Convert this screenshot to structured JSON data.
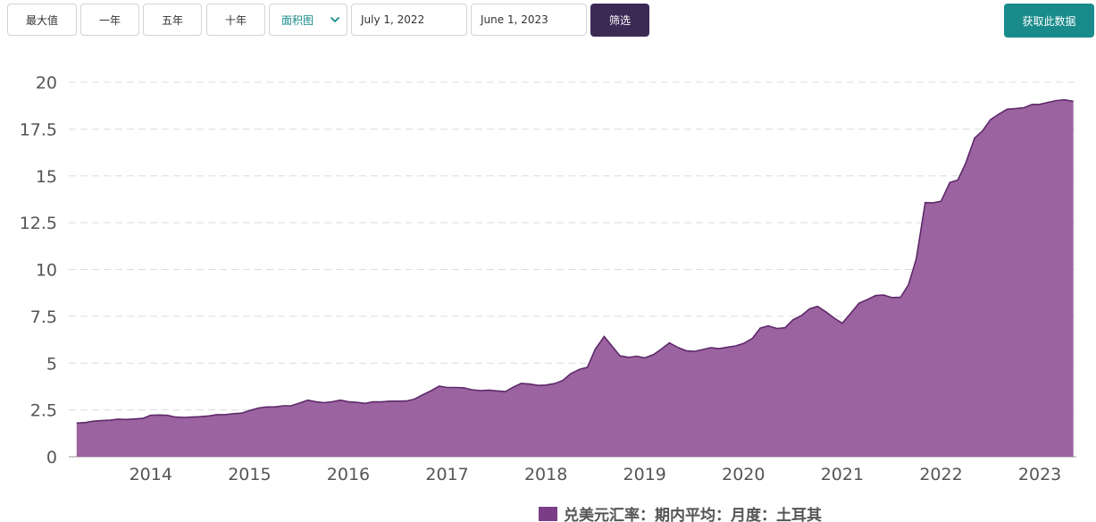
{
  "toolbar": {
    "max_label": "最大值",
    "one_year_label": "一年",
    "five_year_label": "五年",
    "ten_year_label": "十年",
    "chart_type_selected": "面积图",
    "start_date": "July 1, 2022",
    "end_date": "June 1, 2023",
    "filter_label": "筛选",
    "fetch_label": "获取此数据"
  },
  "colors": {
    "area_fill": "#9b63a0",
    "area_line": "#5e2a6a",
    "legend_swatch": "#7b3d86",
    "filter_bg": "#3c2a55",
    "fetch_bg": "#1a8b8b"
  },
  "chart_data": {
    "type": "area",
    "y_ticks": [
      "0",
      "2.5",
      "5",
      "7.5",
      "10",
      "12.5",
      "15",
      "17.5",
      "20"
    ],
    "x_ticks": [
      "2014",
      "2015",
      "2016",
      "2017",
      "2018",
      "2019",
      "2020",
      "2021",
      "2022",
      "2023"
    ],
    "ylim": [
      0,
      20
    ],
    "xlim": [
      2013.25,
      2023.45
    ],
    "grid": true,
    "legend_position": "bottom-center",
    "series": [
      {
        "name": "兑美元汇率：期内平均：月度：土耳其",
        "x": [
          2013.33,
          2013.42,
          2013.5,
          2013.58,
          2013.67,
          2013.75,
          2013.83,
          2013.92,
          2014.0,
          2014.08,
          2014.17,
          2014.25,
          2014.33,
          2014.42,
          2014.5,
          2014.58,
          2014.67,
          2014.75,
          2014.83,
          2014.92,
          2015.0,
          2015.08,
          2015.17,
          2015.25,
          2015.33,
          2015.42,
          2015.5,
          2015.58,
          2015.67,
          2015.75,
          2015.83,
          2015.92,
          2016.0,
          2016.08,
          2016.17,
          2016.25,
          2016.33,
          2016.42,
          2016.5,
          2016.58,
          2016.67,
          2016.75,
          2016.83,
          2016.92,
          2017.0,
          2017.08,
          2017.17,
          2017.25,
          2017.33,
          2017.42,
          2017.5,
          2017.58,
          2017.67,
          2017.75,
          2017.83,
          2017.92,
          2018.0,
          2018.08,
          2018.17,
          2018.25,
          2018.33,
          2018.42,
          2018.5,
          2018.58,
          2018.67,
          2018.75,
          2018.83,
          2018.92,
          2019.0,
          2019.08,
          2019.17,
          2019.25,
          2019.33,
          2019.42,
          2019.5,
          2019.58,
          2019.67,
          2019.75,
          2019.83,
          2019.92,
          2020.0,
          2020.08,
          2020.17,
          2020.25,
          2020.33,
          2020.42,
          2020.5,
          2020.58,
          2020.67,
          2020.75,
          2020.83,
          2020.92,
          2021.0,
          2021.08,
          2021.17,
          2021.25,
          2021.33,
          2021.42,
          2021.5,
          2021.58,
          2021.67,
          2021.75,
          2021.83,
          2021.92,
          2022.0,
          2022.08,
          2022.17,
          2022.25,
          2022.33,
          2022.42,
          2022.5,
          2022.58,
          2022.67,
          2022.75,
          2022.83,
          2022.92,
          2023.0,
          2023.08,
          2023.17,
          2023.25,
          2023.33,
          2023.42
        ],
        "values": [
          1.8,
          1.83,
          1.9,
          1.93,
          1.95,
          2.01,
          1.99,
          2.02,
          2.05,
          2.22,
          2.23,
          2.21,
          2.12,
          2.1,
          2.12,
          2.14,
          2.18,
          2.25,
          2.25,
          2.3,
          2.33,
          2.47,
          2.6,
          2.66,
          2.66,
          2.72,
          2.72,
          2.86,
          3.02,
          2.94,
          2.89,
          2.94,
          3.02,
          2.94,
          2.9,
          2.85,
          2.93,
          2.93,
          2.97,
          2.97,
          2.98,
          3.08,
          3.3,
          3.53,
          3.77,
          3.7,
          3.7,
          3.68,
          3.58,
          3.53,
          3.56,
          3.52,
          3.48,
          3.72,
          3.92,
          3.88,
          3.81,
          3.83,
          3.91,
          4.07,
          4.43,
          4.67,
          4.78,
          5.74,
          6.42,
          5.91,
          5.39,
          5.31,
          5.37,
          5.28,
          5.46,
          5.75,
          6.08,
          5.83,
          5.66,
          5.63,
          5.73,
          5.83,
          5.77,
          5.85,
          5.92,
          6.05,
          6.32,
          6.87,
          6.99,
          6.85,
          6.89,
          7.31,
          7.55,
          7.9,
          8.03,
          7.72,
          7.4,
          7.13,
          7.69,
          8.2,
          8.38,
          8.61,
          8.64,
          8.5,
          8.52,
          9.18,
          10.57,
          13.57,
          13.56,
          13.64,
          14.65,
          14.78,
          15.67,
          17.02,
          17.4,
          18.0,
          18.31,
          18.56,
          18.59,
          18.64,
          18.81,
          18.82,
          18.93,
          19.02,
          19.06,
          18.98
        ]
      }
    ]
  }
}
